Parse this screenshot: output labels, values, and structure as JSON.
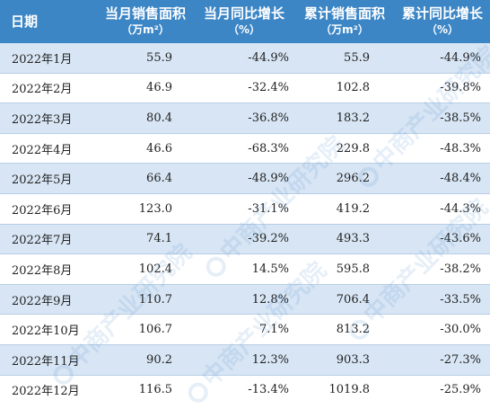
{
  "header": {
    "col_date": "日期",
    "col_monthly_area": "当月销售面积",
    "col_monthly_area_unit": "（万m²）",
    "col_monthly_yoy": "当月同比增长",
    "col_monthly_yoy_unit": "（%）",
    "col_cum_area": "累计销售面积",
    "col_cum_area_unit": "（万m²）",
    "col_cum_yoy": "累计同比增长",
    "col_cum_yoy_unit": "（%）"
  },
  "rows": [
    {
      "date": "2022年1月",
      "monthly_area": "55.9",
      "monthly_yoy": "-44.9%",
      "cum_area": "55.9",
      "cum_yoy": "-44.9%"
    },
    {
      "date": "2022年2月",
      "monthly_area": "46.9",
      "monthly_yoy": "-32.4%",
      "cum_area": "102.8",
      "cum_yoy": "-39.8%"
    },
    {
      "date": "2022年3月",
      "monthly_area": "80.4",
      "monthly_yoy": "-36.8%",
      "cum_area": "183.2",
      "cum_yoy": "-38.5%"
    },
    {
      "date": "2022年4月",
      "monthly_area": "46.6",
      "monthly_yoy": "-68.3%",
      "cum_area": "229.8",
      "cum_yoy": "-48.3%"
    },
    {
      "date": "2022年5月",
      "monthly_area": "66.4",
      "monthly_yoy": "-48.9%",
      "cum_area": "296.2",
      "cum_yoy": "-48.4%"
    },
    {
      "date": "2022年6月",
      "monthly_area": "123.0",
      "monthly_yoy": "-31.1%",
      "cum_area": "419.2",
      "cum_yoy": "-44.3%"
    },
    {
      "date": "2022年7月",
      "monthly_area": "74.1",
      "monthly_yoy": "-39.2%",
      "cum_area": "493.3",
      "cum_yoy": "-43.6%"
    },
    {
      "date": "2022年8月",
      "monthly_area": "102.4",
      "monthly_yoy": "14.5%",
      "cum_area": "595.8",
      "cum_yoy": "-38.2%"
    },
    {
      "date": "2022年9月",
      "monthly_area": "110.7",
      "monthly_yoy": "12.8%",
      "cum_area": "706.4",
      "cum_yoy": "-33.5%"
    },
    {
      "date": "2022年10月",
      "monthly_area": "106.7",
      "monthly_yoy": "7.1%",
      "cum_area": "813.2",
      "cum_yoy": "-30.0%"
    },
    {
      "date": "2022年11月",
      "monthly_area": "90.2",
      "monthly_yoy": "12.3%",
      "cum_area": "903.3",
      "cum_yoy": "-27.3%"
    },
    {
      "date": "2022年12月",
      "monthly_area": "116.5",
      "monthly_yoy": "-13.4%",
      "cum_area": "1019.8",
      "cum_yoy": "-25.9%"
    }
  ],
  "watermark": {
    "text": "中商产业研究院"
  },
  "colors": {
    "header_bg": "#3c86c6",
    "row_alt_bg": "#d7e5f4"
  }
}
